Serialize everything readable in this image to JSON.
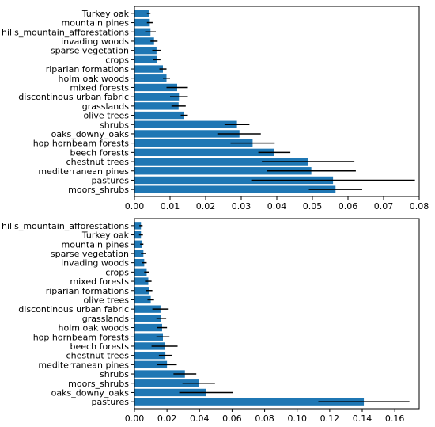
{
  "chart_data": [
    {
      "type": "bar",
      "orientation": "horizontal",
      "categories": [
        "Turkey oak",
        "mountain pines",
        "hills_mountain_afforestations",
        "invading woods",
        "sparse vegetation",
        "crops",
        "riparian formations",
        "holm oak woods",
        "mixed forests",
        "discontinous urban fabric",
        "grasslands",
        "olive trees",
        "shrubs",
        "oaks_downy_oaks",
        "hop hornbeam forests",
        "beech forests",
        "chestnut trees",
        "mediterranean pines",
        "pastures",
        "moors_shrubs"
      ],
      "values": [
        0.004,
        0.0043,
        0.0045,
        0.0055,
        0.0062,
        0.0063,
        0.008,
        0.009,
        0.012,
        0.0125,
        0.0124,
        0.014,
        0.0288,
        0.0295,
        0.0332,
        0.0393,
        0.0488,
        0.0497,
        0.0558,
        0.0565
      ],
      "errors": [
        0.0005,
        0.0008,
        0.0015,
        0.001,
        0.0012,
        0.001,
        0.001,
        0.001,
        0.003,
        0.0025,
        0.002,
        0.001,
        0.0035,
        0.006,
        0.0062,
        0.0045,
        0.013,
        0.0125,
        0.023,
        0.0075
      ],
      "xlim": [
        0,
        0.08
      ],
      "xticks": [
        "0.00",
        "0.01",
        "0.02",
        "0.03",
        "0.04",
        "0.05",
        "0.06",
        "0.07",
        "0.08"
      ],
      "title": "",
      "xlabel": "",
      "ylabel": ""
    },
    {
      "type": "bar",
      "orientation": "horizontal",
      "categories": [
        "hills_mountain_afforestations",
        "Turkey oak",
        "mountain pines",
        "sparse vegetation",
        "invading woods",
        "crops",
        "mixed forests",
        "riparian formations",
        "olive trees",
        "discontinous urban fabric",
        "grasslands",
        "holm oak woods",
        "hop hornbeam forests",
        "beech forests",
        "chestnut trees",
        "mediterranean pines",
        "shrubs",
        "moors_shrubs",
        "oaks_downy_oaks",
        "pastures"
      ],
      "values": [
        0.004,
        0.004,
        0.0045,
        0.0055,
        0.006,
        0.0075,
        0.0085,
        0.009,
        0.01,
        0.016,
        0.0165,
        0.017,
        0.0175,
        0.0185,
        0.019,
        0.02,
        0.031,
        0.0395,
        0.044,
        0.141
      ],
      "errors": [
        0.001,
        0.0012,
        0.001,
        0.0015,
        0.0015,
        0.0015,
        0.002,
        0.002,
        0.002,
        0.005,
        0.003,
        0.003,
        0.004,
        0.008,
        0.004,
        0.006,
        0.007,
        0.01,
        0.0165,
        0.028
      ],
      "xlim": [
        0,
        0.175
      ],
      "xticks": [
        "0.00",
        "0.02",
        "0.04",
        "0.06",
        "0.08",
        "0.10",
        "0.12",
        "0.14",
        "0.16"
      ],
      "title": "",
      "xlabel": "",
      "ylabel": ""
    }
  ]
}
